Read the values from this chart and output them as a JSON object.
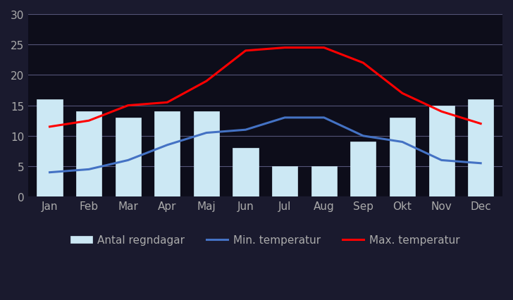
{
  "months": [
    "Jan",
    "Feb",
    "Mar",
    "Apr",
    "Maj",
    "Jun",
    "Jul",
    "Aug",
    "Sep",
    "Okt",
    "Nov",
    "Dec"
  ],
  "rain_days": [
    16,
    14,
    13,
    14,
    14,
    8,
    5,
    5,
    9,
    13,
    15,
    16
  ],
  "min_temp": [
    4,
    4.5,
    6,
    8.5,
    10.5,
    11,
    13,
    13,
    10,
    9,
    6,
    5.5
  ],
  "max_temp": [
    11.5,
    12.5,
    15,
    15.5,
    19,
    24,
    24.5,
    24.5,
    22,
    17,
    14,
    12
  ],
  "bar_color": "#cce8f4",
  "bar_edge_color": "#cce8f4",
  "min_temp_color": "#4472c4",
  "max_temp_color": "#ff0000",
  "background_color": "#1a1a2e",
  "plot_bg_color": "#0d0d1a",
  "ylim": [
    0,
    30
  ],
  "yticks": [
    0,
    5,
    10,
    15,
    20,
    25,
    30
  ],
  "grid_color": "#555577",
  "tick_color": "#aaaaaa",
  "legend_labels": [
    "Antal regndagar",
    "Min. temperatur",
    "Max. temperatur"
  ]
}
